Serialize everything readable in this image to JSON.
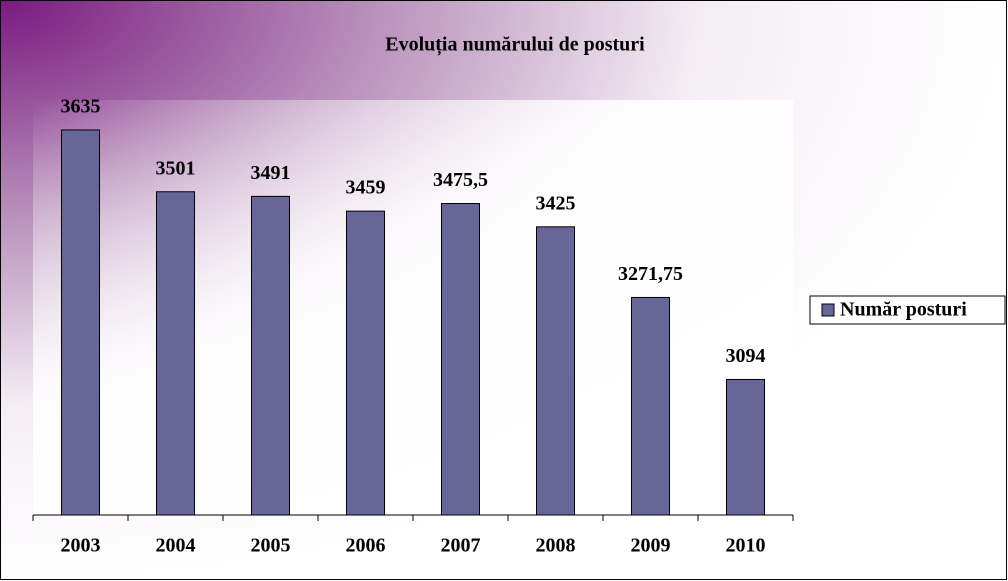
{
  "chart_data": {
    "type": "bar",
    "title": "Evoluția numărului de posturi",
    "categories": [
      "2003",
      "2004",
      "2005",
      "2006",
      "2007",
      "2008",
      "2009",
      "2010"
    ],
    "series": [
      {
        "name": "Număr posturi",
        "color": "#666699",
        "values": [
          3635,
          3501,
          3491,
          3459,
          3475.5,
          3425,
          3271.75,
          3094
        ],
        "value_labels": [
          "3635",
          "3501",
          "3491",
          "3459",
          "3475,5",
          "3425",
          "3271,75",
          "3094"
        ]
      }
    ],
    "ylim": [
      2800,
      3700
    ],
    "legend": "right"
  }
}
